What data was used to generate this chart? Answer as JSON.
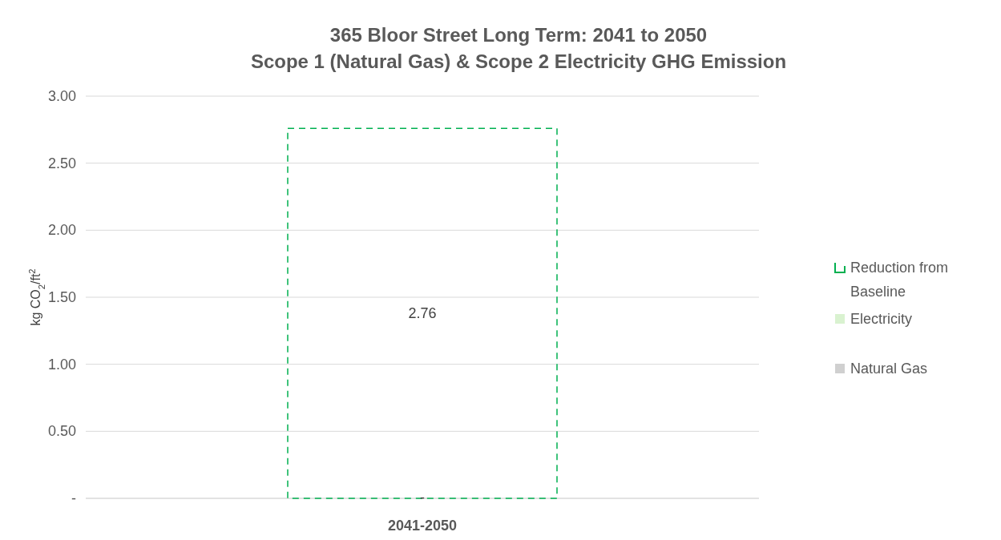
{
  "chart_data": {
    "type": "bar",
    "stacked": true,
    "title": "365 Bloor Street Long Term: 2041 to 2050",
    "subtitle": "Scope 1 (Natural Gas) & Scope 2 Electricity GHG Emission",
    "ylabel": "kg CO$_{2}$/ft$^{2}$",
    "categories": [
      "2041-2050"
    ],
    "series": [
      {
        "name": "Natural Gas",
        "color": "#d0d0d0",
        "values": [
          0
        ]
      },
      {
        "name": "Electricity",
        "color": "#d9f2d0",
        "values": [
          0
        ]
      },
      {
        "name": "Reduction from Baseline",
        "color": "#00b050",
        "values": [
          2.76
        ],
        "value_labels": [
          "2.76"
        ],
        "line_style": "dashed"
      }
    ],
    "ylim": [
      0,
      3
    ],
    "yticks": [
      {
        "value": 0,
        "label": "-"
      },
      {
        "value": 0.5,
        "label": "0.50"
      },
      {
        "value": 1,
        "label": "1.00"
      },
      {
        "value": 1.5,
        "label": "1.50"
      },
      {
        "value": 2,
        "label": "2.00"
      },
      {
        "value": 2.5,
        "label": "2.50"
      },
      {
        "value": 3,
        "label": "3.00"
      }
    ],
    "grid": "y",
    "legend": "right",
    "annotations": [
      {
        "text": "-",
        "x": "2041-2050",
        "y": 0
      }
    ]
  }
}
